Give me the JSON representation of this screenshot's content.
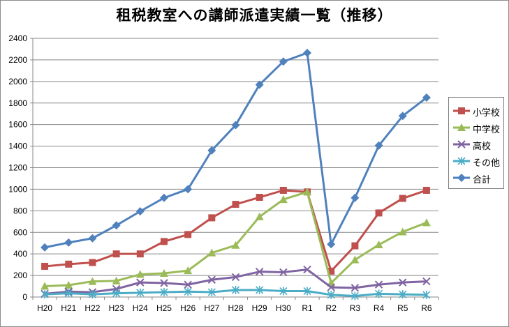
{
  "chart_data": {
    "type": "line",
    "title": "租税教室への講師派遣実績一覧（推移）",
    "categories": [
      "H20",
      "H21",
      "H22",
      "H23",
      "H24",
      "H25",
      "H26",
      "H27",
      "H28",
      "H29",
      "H30",
      "R1",
      "R2",
      "R3",
      "R4",
      "R5",
      "R6"
    ],
    "ylim": [
      0,
      2400
    ],
    "yticks": [
      0,
      200,
      400,
      600,
      800,
      1000,
      1200,
      1400,
      1600,
      1800,
      2000,
      2200,
      2400
    ],
    "grid": true,
    "legend": "right",
    "series": [
      {
        "name": "小学校",
        "color": "#c0504d",
        "marker": "square",
        "values": [
          285,
          305,
          320,
          400,
          400,
          515,
          580,
          735,
          860,
          925,
          990,
          975,
          240,
          475,
          780,
          915,
          990
        ]
      },
      {
        "name": "中学校",
        "color": "#9bbb59",
        "marker": "triangle",
        "values": [
          100,
          110,
          145,
          150,
          210,
          220,
          245,
          410,
          480,
          745,
          905,
          975,
          130,
          345,
          485,
          605,
          690
        ]
      },
      {
        "name": "高校",
        "color": "#8064a2",
        "marker": "x",
        "values": [
          30,
          50,
          45,
          75,
          135,
          130,
          115,
          160,
          185,
          235,
          230,
          255,
          90,
          85,
          115,
          135,
          145
        ]
      },
      {
        "name": "その他",
        "color": "#4bacc6",
        "marker": "star",
        "values": [
          25,
          35,
          25,
          35,
          40,
          45,
          50,
          45,
          65,
          65,
          55,
          55,
          20,
          10,
          30,
          25,
          20
        ]
      },
      {
        "name": "合計",
        "color": "#4f81bd",
        "marker": "diamond",
        "values": [
          460,
          505,
          545,
          665,
          795,
          920,
          1000,
          1360,
          1595,
          1970,
          2185,
          2265,
          490,
          920,
          1405,
          1680,
          1850
        ]
      }
    ]
  }
}
